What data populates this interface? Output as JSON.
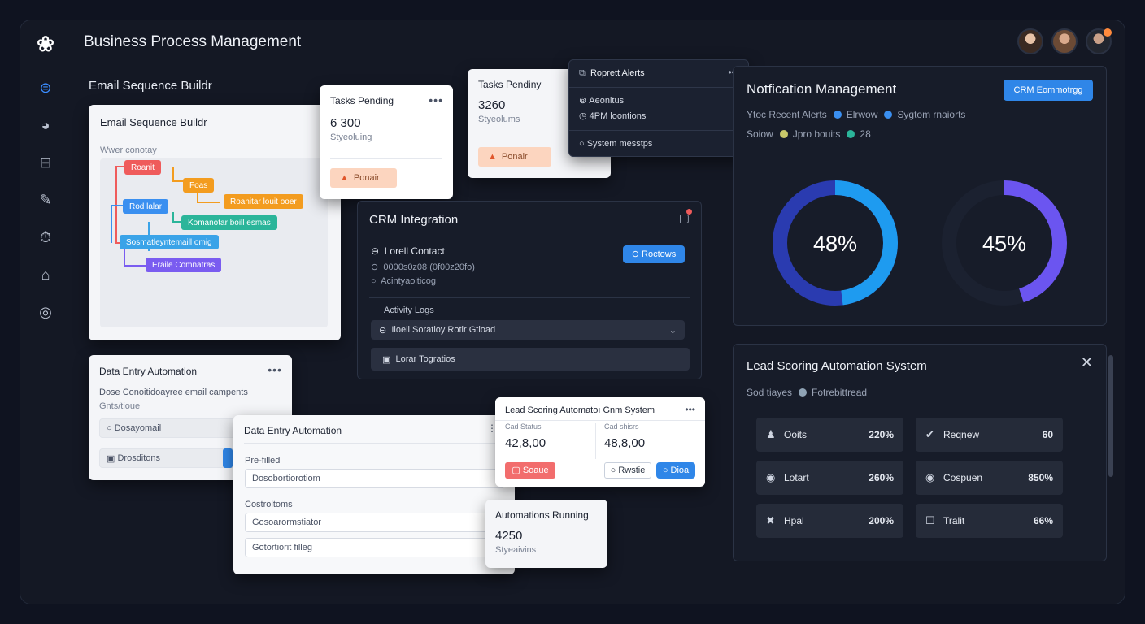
{
  "app": {
    "title": "Business Process Management"
  },
  "rail_icons": [
    "logo-icon",
    "dashboard-icon",
    "workflow-icon",
    "layout-icon",
    "edit-icon",
    "clock-icon",
    "home-icon",
    "instagram-icon"
  ],
  "email_builder": {
    "section_label": "Email Sequence Buildr",
    "card_title": "Email Sequence Buildr",
    "caption": "Wwer conotay",
    "nodes": [
      {
        "label": "Roanit",
        "color": "#ef5b5b"
      },
      {
        "label": "Foas",
        "color": "#f39c1f"
      },
      {
        "label": "Roanitar louit ooer",
        "color": "#f39c1f"
      },
      {
        "label": "Rod lalar",
        "color": "#3a8ff0"
      },
      {
        "label": "Komanotar boill esmas",
        "color": "#2bb59a"
      },
      {
        "label": "Sosmatleyntemaill omig",
        "color": "#3aa3e8"
      },
      {
        "label": "Eraile Comnatras",
        "color": "#7a5cf0"
      }
    ]
  },
  "tasks_card_1": {
    "title": "Tasks Pending",
    "value": "6 300",
    "sub": "Styeoluing",
    "button": "Ponair"
  },
  "tasks_card_2": {
    "title": "Tasks Pendiny",
    "value": "3260",
    "sub": "Styeolums",
    "button": "Ponair"
  },
  "report_alerts": {
    "title": "Roprett Alerts",
    "items": [
      "Aeonitus",
      "4PM loontions"
    ],
    "footer": "System messtps"
  },
  "crm": {
    "title": "CRM Integration",
    "rows": [
      "Lorell Contact",
      "0000s0z08 (0f00z20fo)",
      "Acintyaoiticog"
    ],
    "button": "Roctows",
    "activity_label": "Activity Logs",
    "select_value": "Iloell Soratloy Rotir Gtioad",
    "footer_row": "Lorar Togratios"
  },
  "data_entry_back": {
    "title": "Data Entry Automation",
    "desc": "Dose Conoitidoayree email campents",
    "desc2": "Gnts/tioue",
    "field1": "Dosayomail",
    "field2": "Drosditons"
  },
  "data_entry_front": {
    "title": "Data Entry Automation",
    "label1": "Pre-filled",
    "field1": "Dosobortiorotiom",
    "label2": "Costroltoms",
    "field2": "Gosoarormstiator",
    "field3": "Gotortiorit filleg"
  },
  "lead_popup": {
    "title": "Lead Scoring Automatoı Gnm System",
    "col1_label": "Cad Status",
    "col1_value": "42,8,00",
    "col2_label": "Cad shisrs",
    "col2_value": "48,8,00",
    "btn_red": "Soaue",
    "btn_outline": "Rwstie",
    "btn_blue": "Dioa"
  },
  "automations": {
    "title": "Automations Running",
    "value": "4250",
    "sub": "Styeaivins"
  },
  "notifications": {
    "title": "Notfication Management",
    "button": "CRM Eommotrgg",
    "legend_row1": {
      "lead": "Ytoc Recent Alerts",
      "items": [
        {
          "label": "Elrwow",
          "color": "#3a8ff0"
        },
        {
          "label": "Sygtom rnaiorts",
          "color": "#3a8ff0"
        }
      ]
    },
    "legend_row2": {
      "lead": "Soiow",
      "items": [
        {
          "label": "Jpro bouits",
          "color": "#c8c86a"
        },
        {
          "label": "28",
          "color": "#2bb59a"
        }
      ]
    },
    "donut1": {
      "value": 48,
      "label": "48%",
      "color": "#1e9bf0",
      "track": "#2a3bb0"
    },
    "donut2": {
      "value": 45,
      "label": "45%",
      "color": "#6b55f0",
      "track": "#1b2130"
    }
  },
  "lead_system": {
    "title": "Lead Scoring Automation System",
    "legend_lead": "Sod tiayes",
    "legend_item": "Fotrebittread",
    "tiles": [
      {
        "icon": "user-icon",
        "label": "Ooits",
        "value": "220%"
      },
      {
        "icon": "check-icon",
        "label": "Reqnew",
        "value": "60"
      },
      {
        "icon": "target-icon",
        "label": "Lotart",
        "value": "260%"
      },
      {
        "icon": "target-icon",
        "label": "Cospuen",
        "value": "850%"
      },
      {
        "icon": "close-icon",
        "label": "Hpal",
        "value": "200%"
      },
      {
        "icon": "square-icon",
        "label": "Tralit",
        "value": "66%"
      }
    ]
  }
}
